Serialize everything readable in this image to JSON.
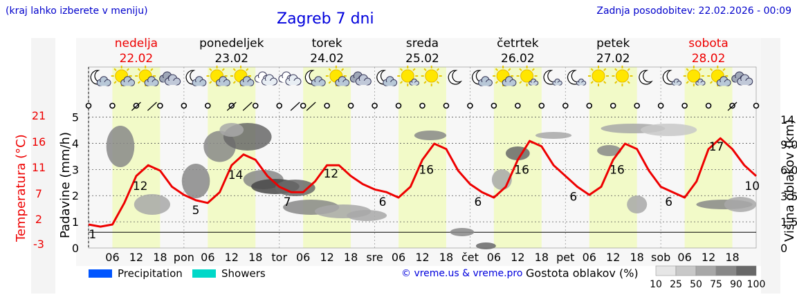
{
  "header": {
    "hint": "(kraj lahko izberete v meniju)",
    "title": "Zagreb 7 dni",
    "updated": "Zadnja posodobitev: 22.02.2026 - 00:09"
  },
  "days": [
    {
      "name": "nedelja",
      "date": "22.02",
      "weekend": true
    },
    {
      "name": "ponedeljek",
      "date": "23.02",
      "weekend": false
    },
    {
      "name": "torek",
      "date": "24.02",
      "weekend": false
    },
    {
      "name": "sreda",
      "date": "25.02",
      "weekend": false
    },
    {
      "name": "četrtek",
      "date": "26.02",
      "weekend": false
    },
    {
      "name": "petek",
      "date": "27.02",
      "weekend": false
    },
    {
      "name": "sobota",
      "date": "28.02",
      "weekend": true
    }
  ],
  "weather_icons": [
    "moon-cloud-icon",
    "sun-cloud-icon",
    "sun-cloud-icon",
    "cloud-icon",
    "moon-cloud-icon",
    "sun-cloud-icon",
    "sun-cloud-icon",
    "cloud-rain-icon",
    "cloud-rain-icon",
    "moon-cloud-icon",
    "sun-cloud-icon",
    "cloud-icon",
    "moon-cloud-icon",
    "sun-small-cloud-icon",
    "sun-icon",
    "moon-icon",
    "moon-cloud-icon",
    "sun-cloud-icon",
    "sun-small-cloud-icon",
    "moon-small-cloud-icon",
    "moon-small-cloud-icon",
    "sun-icon",
    "sun-icon",
    "moon-icon",
    "moon-small-cloud-icon",
    "sun-small-cloud-icon",
    "sun-cloud-icon",
    "cloud-icon"
  ],
  "colors": {
    "temperature": "#ee0000",
    "precipitation": "#0055ff",
    "showers": "#00d8c8",
    "day_band": "#f2fac8",
    "weekend_day": "#ee0000",
    "axis_text": "#000000"
  },
  "chart_data": {
    "type": "line",
    "x_unit": "hours from 22.02.2026 00:00",
    "x_tick_hours": [
      6,
      12,
      18,
      24,
      30,
      36,
      42,
      48,
      54,
      60,
      66,
      72,
      78,
      84,
      90,
      96,
      102,
      108,
      114,
      120,
      126,
      132,
      138,
      144,
      150,
      156,
      162
    ],
    "x_tick_labels": [
      "06",
      "12",
      "18",
      "pon",
      "06",
      "12",
      "18",
      "tor",
      "06",
      "12",
      "18",
      "sre",
      "06",
      "12",
      "18",
      "čet",
      "06",
      "12",
      "18",
      "pet",
      "06",
      "12",
      "18",
      "sob",
      "06",
      "12",
      "18"
    ],
    "left_axis_precip": {
      "label": "Padavine (mm/h)",
      "ticks": [
        0,
        1,
        2,
        3,
        4,
        5
      ],
      "ylim": [
        0,
        5.2
      ]
    },
    "left_axis_temp": {
      "label": "Temperatura (°C)",
      "ticks": [
        -3,
        2,
        7,
        11,
        16,
        21
      ]
    },
    "right_axis": {
      "label": "Višina oblakov (km)",
      "ticks": [
        "0",
        "1.5",
        "3.5",
        "6.0",
        "9.0",
        "14"
      ]
    },
    "series": [
      {
        "name": "Temperatura",
        "x": [
          0,
          3,
          6,
          9,
          12,
          15,
          18,
          21,
          24,
          27,
          30,
          33,
          36,
          39,
          42,
          45,
          48,
          51,
          54,
          57,
          60,
          63,
          66,
          69,
          72,
          75,
          78,
          81,
          84,
          87,
          90,
          93,
          96,
          99,
          102,
          105,
          108,
          111,
          114,
          117,
          120,
          123,
          126,
          129,
          132,
          135,
          138,
          141,
          144,
          147,
          150,
          153,
          156,
          159,
          162,
          165,
          168
        ],
        "values": [
          1,
          0.6,
          1,
          5,
          10,
          12,
          11,
          8,
          6.5,
          5.5,
          5,
          7,
          12,
          14,
          13,
          10,
          8,
          7,
          7,
          9,
          12,
          12,
          10,
          8.5,
          7.5,
          7,
          6,
          8,
          13,
          16,
          15,
          11,
          8.5,
          7,
          6,
          8,
          13,
          16.5,
          15.5,
          12,
          10,
          8,
          6.5,
          8,
          13,
          16,
          15,
          11,
          8,
          7,
          6,
          9,
          15,
          17,
          15,
          12,
          10
        ],
        "labels": [
          {
            "x": 1,
            "text": "1"
          },
          {
            "x": 13,
            "text": "12"
          },
          {
            "x": 27,
            "text": "5"
          },
          {
            "x": 37,
            "text": "14"
          },
          {
            "x": 50,
            "text": "7"
          },
          {
            "x": 61,
            "text": "12"
          },
          {
            "x": 74,
            "text": "6"
          },
          {
            "x": 85,
            "text": "16"
          },
          {
            "x": 98,
            "text": "6"
          },
          {
            "x": 109,
            "text": "16"
          },
          {
            "x": 122,
            "text": "6"
          },
          {
            "x": 133,
            "text": "16"
          },
          {
            "x": 146,
            "text": "6"
          },
          {
            "x": 158,
            "text": "17"
          },
          {
            "x": 167,
            "text": "10"
          }
        ]
      }
    ],
    "legend": [
      {
        "label": "Precipitation",
        "color": "#0055ff"
      },
      {
        "label": "Showers",
        "color": "#00d8c8"
      }
    ],
    "cloud_density": {
      "title": "Gostota oblakov (%)",
      "levels": [
        "10",
        "25",
        "50",
        "75",
        "90",
        "100"
      ],
      "colors": [
        "#e6e6e6",
        "#c8c8c8",
        "#a8a8a8",
        "#888888",
        "#686868",
        "#484848"
      ]
    }
  },
  "footer": {
    "credit": "© vreme.us & vreme.pro"
  }
}
